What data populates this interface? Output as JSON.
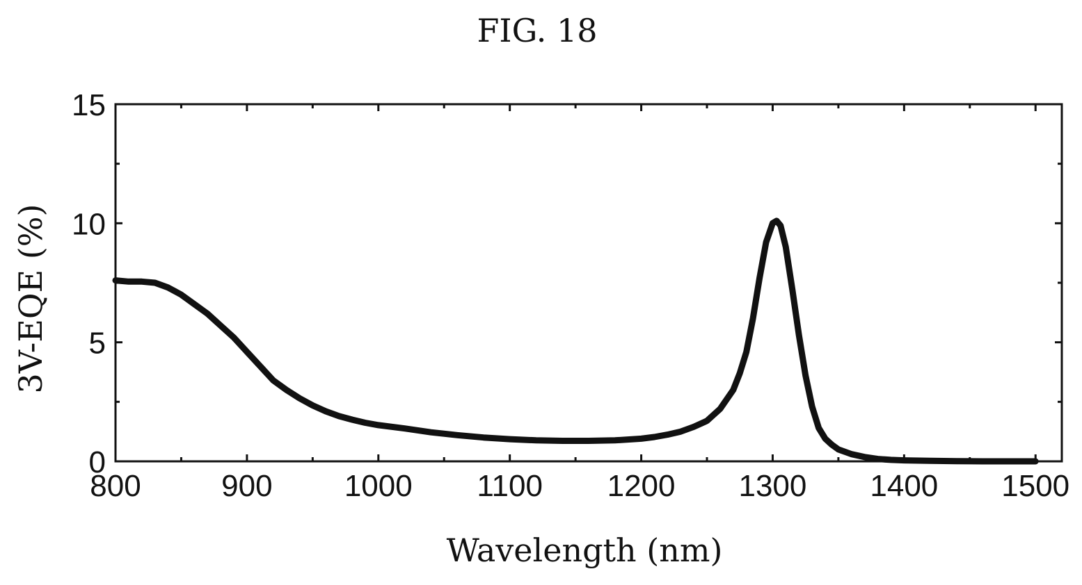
{
  "figure": {
    "title": "FIG. 18"
  },
  "chart_data": {
    "type": "line",
    "title": "FIG. 18",
    "xlabel": "Wavelength (nm)",
    "ylabel": "3V-EQE (%)",
    "xlim": [
      800,
      1520
    ],
    "ylim": [
      0,
      15
    ],
    "xticks": [
      800,
      900,
      1000,
      1100,
      1200,
      1300,
      1400,
      1500
    ],
    "yticks": [
      0,
      5,
      10,
      15
    ],
    "grid": false,
    "series": [
      {
        "color": "#111111",
        "x": [
          800,
          810,
          820,
          830,
          840,
          850,
          860,
          870,
          880,
          890,
          900,
          910,
          920,
          930,
          940,
          950,
          960,
          970,
          980,
          990,
          1000,
          1020,
          1040,
          1060,
          1080,
          1100,
          1120,
          1140,
          1160,
          1180,
          1200,
          1210,
          1220,
          1230,
          1240,
          1250,
          1260,
          1270,
          1275,
          1280,
          1285,
          1290,
          1295,
          1300,
          1303,
          1306,
          1310,
          1315,
          1320,
          1325,
          1330,
          1335,
          1340,
          1345,
          1350,
          1360,
          1370,
          1380,
          1390,
          1400,
          1420,
          1440,
          1460,
          1480,
          1500
        ],
        "y": [
          7.6,
          7.55,
          7.55,
          7.5,
          7.3,
          7.0,
          6.6,
          6.2,
          5.7,
          5.2,
          4.6,
          4.0,
          3.4,
          3.0,
          2.65,
          2.35,
          2.1,
          1.9,
          1.75,
          1.62,
          1.52,
          1.38,
          1.22,
          1.1,
          1.0,
          0.93,
          0.88,
          0.86,
          0.86,
          0.88,
          0.95,
          1.02,
          1.12,
          1.25,
          1.45,
          1.7,
          2.2,
          3.0,
          3.7,
          4.6,
          6.0,
          7.7,
          9.2,
          10.0,
          10.1,
          9.9,
          9.0,
          7.2,
          5.3,
          3.6,
          2.3,
          1.4,
          0.95,
          0.7,
          0.5,
          0.3,
          0.18,
          0.1,
          0.06,
          0.04,
          0.02,
          0.01,
          0.0,
          0.0,
          0.0
        ]
      }
    ]
  }
}
